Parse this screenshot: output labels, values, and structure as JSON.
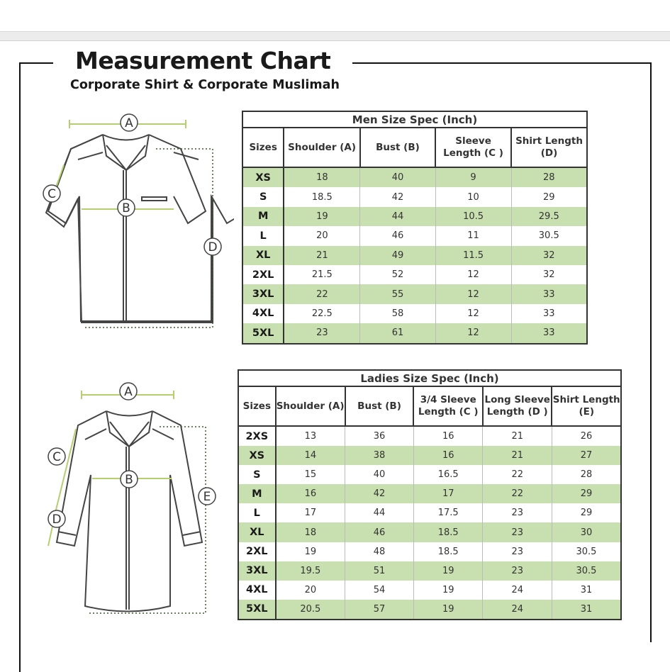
{
  "header": {
    "title": "Measurement Chart",
    "subtitle": "Corporate Shirt & Corporate Muslimah"
  },
  "colors": {
    "row_highlight": "#c8dfb0",
    "measure_line": "#b5cf6e",
    "dotted_line": "#3a5a2a"
  },
  "men_diagram": {
    "labels": [
      "A",
      "B",
      "C",
      "D"
    ]
  },
  "ladies_diagram": {
    "labels": [
      "A",
      "B",
      "C",
      "D",
      "E"
    ]
  },
  "men_table": {
    "caption": "Men Size Spec (Inch)",
    "columns": [
      "Sizes",
      "Shoulder (A)",
      "Bust (B)",
      "Sleeve Length (C )",
      "Shirt Length (D)"
    ],
    "rows": [
      [
        "XS",
        "18",
        "40",
        "9",
        "28"
      ],
      [
        "S",
        "18.5",
        "42",
        "10",
        "29"
      ],
      [
        "M",
        "19",
        "44",
        "10.5",
        "29.5"
      ],
      [
        "L",
        "20",
        "46",
        "11",
        "30.5"
      ],
      [
        "XL",
        "21",
        "49",
        "11.5",
        "32"
      ],
      [
        "2XL",
        "21.5",
        "52",
        "12",
        "32"
      ],
      [
        "3XL",
        "22",
        "55",
        "12",
        "33"
      ],
      [
        "4XL",
        "22.5",
        "58",
        "12",
        "33"
      ],
      [
        "5XL",
        "23",
        "61",
        "12",
        "33"
      ]
    ]
  },
  "ladies_table": {
    "caption": "Ladies Size Spec (Inch)",
    "columns": [
      "Sizes",
      "Shoulder (A)",
      "Bust (B)",
      "3/4 Sleeve Length (C )",
      "Long Sleeve Length (D )",
      "Shirt Length (E)"
    ],
    "rows": [
      [
        "2XS",
        "13",
        "36",
        "16",
        "21",
        "26"
      ],
      [
        "XS",
        "14",
        "38",
        "16",
        "21",
        "27"
      ],
      [
        "S",
        "15",
        "40",
        "16.5",
        "22",
        "28"
      ],
      [
        "M",
        "16",
        "42",
        "17",
        "22",
        "29"
      ],
      [
        "L",
        "17",
        "44",
        "17.5",
        "23",
        "29"
      ],
      [
        "XL",
        "18",
        "46",
        "18.5",
        "23",
        "30"
      ],
      [
        "2XL",
        "19",
        "48",
        "18.5",
        "23",
        "30.5"
      ],
      [
        "3XL",
        "19.5",
        "51",
        "19",
        "23",
        "30.5"
      ],
      [
        "4XL",
        "20",
        "54",
        "19",
        "24",
        "31"
      ],
      [
        "5XL",
        "20.5",
        "57",
        "19",
        "24",
        "31"
      ]
    ]
  }
}
